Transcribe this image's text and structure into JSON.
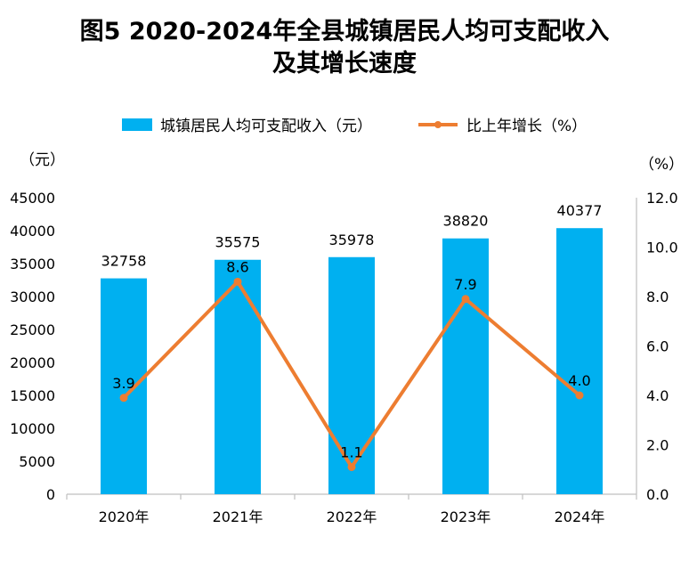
{
  "chart_data": {
    "type": "bar",
    "title_line1": "图5  2020-2024年全县城镇居民人均可支配收入",
    "title_line2": "及其增长速度",
    "categories": [
      "2020年",
      "2021年",
      "2022年",
      "2023年",
      "2024年"
    ],
    "y_unit": "（元）",
    "y2_unit": "（%）",
    "ylim": [
      0,
      45000
    ],
    "y_ticks": [
      "0",
      "5000",
      "10000",
      "15000",
      "20000",
      "25000",
      "30000",
      "35000",
      "40000",
      "45000"
    ],
    "y2lim": [
      0,
      12
    ],
    "y2_ticks": [
      "0.0",
      "2.0",
      "4.0",
      "6.0",
      "8.0",
      "10.0",
      "12.0"
    ],
    "grid": false,
    "legend_position": "top",
    "series": [
      {
        "name": "城镇居民人均可支配收入（元）",
        "type": "bar",
        "axis": "left",
        "color": "#00B0F0",
        "values": [
          32758,
          35575,
          35978,
          38820,
          40377
        ],
        "labels": [
          "32758",
          "35575",
          "35978",
          "38820",
          "40377"
        ]
      },
      {
        "name": "比上年增长（%）",
        "type": "line",
        "axis": "right",
        "color": "#ED7D31",
        "values": [
          3.9,
          8.6,
          1.1,
          7.9,
          4.0
        ],
        "labels": [
          "3.9",
          "8.6",
          "1.1",
          "7.9",
          "4.0"
        ]
      }
    ]
  }
}
